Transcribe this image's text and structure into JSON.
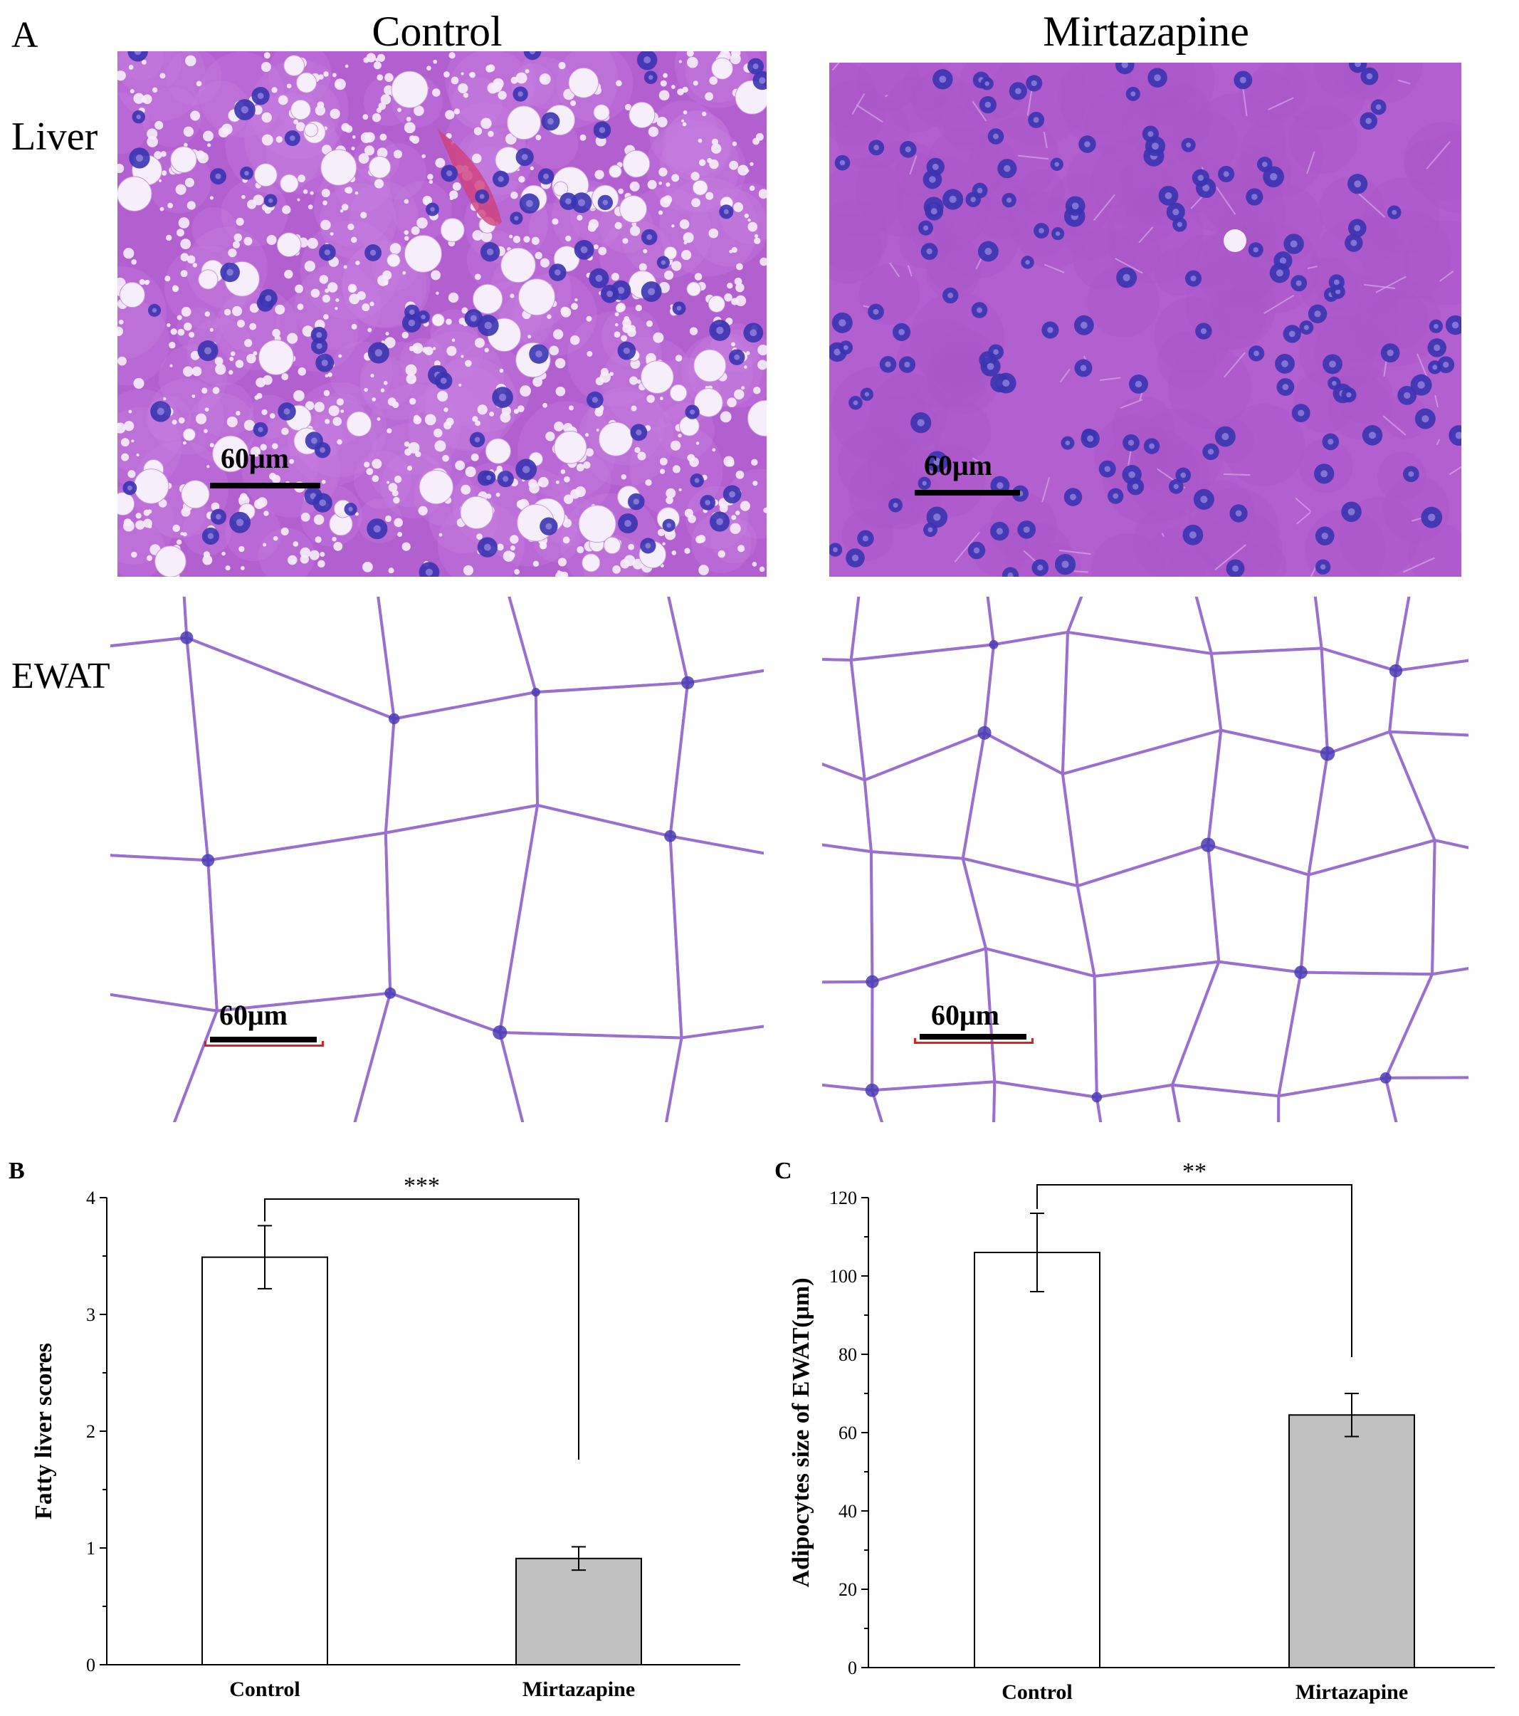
{
  "panel_a": {
    "letter": "A",
    "columns": [
      "Control",
      "Mirtazapine"
    ],
    "rows": [
      "Liver",
      "EWAT"
    ],
    "scale_label": "60μm",
    "colors": {
      "hepatocyte": "#b25fd0",
      "nucleus": "#3a34b0",
      "lipid": "#f6eefb",
      "adipocyte_membrane": "#9a6fcf",
      "blood": "#d0407a"
    }
  },
  "chart_data": [
    {
      "letter": "B",
      "type": "bar",
      "categories": [
        "Control",
        "Mirtazapine"
      ],
      "values": [
        3.49,
        0.91
      ],
      "errors": [
        0.27,
        0.1
      ],
      "bar_colors": [
        "#ffffff",
        "#c0c0c0"
      ],
      "ylabel": "Fatty liver scores",
      "ylim": [
        0,
        4
      ],
      "yticks": [
        0,
        1,
        2,
        3,
        4
      ],
      "significance": "***"
    },
    {
      "letter": "C",
      "type": "bar",
      "categories": [
        "Control",
        "Mirtazapine"
      ],
      "values": [
        106,
        64.5
      ],
      "errors": [
        10,
        5.5
      ],
      "bar_colors": [
        "#ffffff",
        "#c0c0c0"
      ],
      "ylabel": "Adipocytes size of EWAT(μm)",
      "ylim": [
        0,
        120
      ],
      "yticks": [
        0,
        20,
        40,
        60,
        80,
        100,
        120
      ],
      "significance": "**"
    }
  ]
}
